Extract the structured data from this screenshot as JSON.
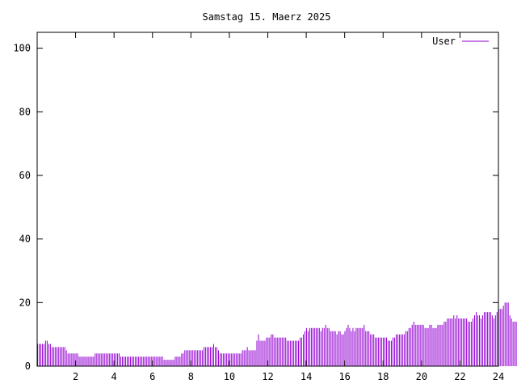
{
  "chart_data": {
    "type": "bar",
    "title": "Samstag 15. Maerz 2025",
    "xlabel": "",
    "ylabel": "",
    "xlim": [
      0,
      24
    ],
    "ylim": [
      0,
      105
    ],
    "xticks": [
      2,
      4,
      6,
      8,
      10,
      12,
      14,
      16,
      18,
      20,
      22,
      24
    ],
    "yticks": [
      0,
      20,
      40,
      60,
      80,
      100
    ],
    "legend": "top-right",
    "grid": false,
    "series": [
      {
        "name": "User",
        "color": "#9400d3",
        "step_hours": 0.0833,
        "values": [
          7,
          7,
          7,
          7,
          7,
          8,
          8,
          7,
          7,
          6,
          6,
          6,
          6,
          6,
          6,
          6,
          6,
          6,
          5,
          4,
          4,
          4,
          4,
          4,
          4,
          4,
          3,
          3,
          3,
          3,
          3,
          3,
          3,
          3,
          3,
          3,
          4,
          4,
          4,
          4,
          4,
          4,
          4,
          4,
          4,
          4,
          4,
          4,
          4,
          4,
          4,
          4,
          3,
          3,
          3,
          3,
          3,
          3,
          3,
          3,
          3,
          3,
          3,
          3,
          3,
          3,
          3,
          3,
          3,
          3,
          3,
          3,
          3,
          3,
          3,
          3,
          3,
          3,
          3,
          2,
          2,
          2,
          2,
          2,
          2,
          2,
          3,
          3,
          3,
          3,
          4,
          4,
          5,
          5,
          5,
          5,
          5,
          5,
          5,
          5,
          5,
          5,
          5,
          5,
          6,
          6,
          6,
          6,
          6,
          6,
          7,
          6,
          6,
          5,
          4,
          4,
          4,
          4,
          4,
          4,
          4,
          4,
          4,
          4,
          4,
          4,
          4,
          4,
          5,
          5,
          5,
          6,
          5,
          5,
          5,
          5,
          5,
          8,
          10,
          8,
          8,
          8,
          8,
          9,
          9,
          9,
          10,
          10,
          9,
          9,
          9,
          9,
          9,
          9,
          9,
          9,
          8,
          8,
          8,
          8,
          8,
          8,
          8,
          8,
          9,
          9,
          10,
          11,
          12,
          11,
          12,
          12,
          12,
          12,
          12,
          12,
          12,
          11,
          12,
          12,
          13,
          12,
          12,
          11,
          11,
          11,
          11,
          10,
          11,
          11,
          10,
          10,
          11,
          12,
          13,
          12,
          11,
          12,
          11,
          12,
          12,
          12,
          12,
          12,
          13,
          11,
          11,
          11,
          10,
          10,
          10,
          9,
          9,
          9,
          9,
          9,
          9,
          9,
          9,
          8,
          8,
          8,
          9,
          9,
          10,
          10,
          10,
          10,
          10,
          10,
          11,
          11,
          12,
          12,
          13,
          14,
          13,
          13,
          13,
          13,
          13,
          13,
          12,
          12,
          12,
          13,
          13,
          12,
          12,
          12,
          13,
          13,
          13,
          13,
          14,
          14,
          15,
          15,
          15,
          15,
          16,
          15,
          16,
          15,
          15,
          15,
          15,
          15,
          15,
          14,
          14,
          14,
          15,
          16,
          17,
          16,
          16,
          15,
          16,
          17,
          17,
          17,
          17,
          17,
          16,
          15,
          16,
          17,
          18,
          18,
          18,
          19,
          20,
          20,
          20,
          16,
          15,
          14,
          14,
          14,
          14,
          13,
          12,
          11,
          12,
          11,
          11
        ]
      }
    ]
  }
}
